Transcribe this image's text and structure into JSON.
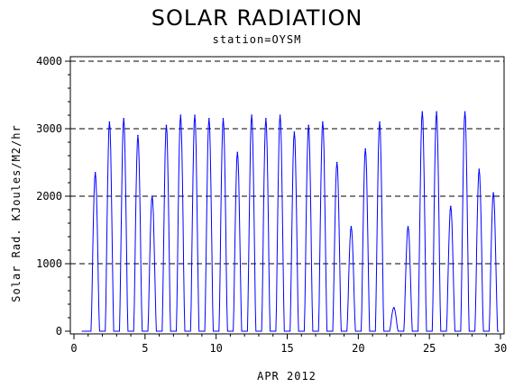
{
  "chart_data": {
    "type": "line",
    "title": "SOLAR RADIATION",
    "subtitle": "station=OYSM",
    "xlabel": "APR 2012",
    "ylabel": "Solar Rad. KJoules/M2/hr",
    "xlim": [
      0,
      30
    ],
    "ylim": [
      0,
      4000
    ],
    "x_ticks": [
      0,
      5,
      10,
      15,
      20,
      25,
      30
    ],
    "y_ticks": [
      0,
      1000,
      2000,
      3000,
      4000
    ],
    "grid": "horizontal dashed",
    "series": [
      {
        "color": "#0000ff",
        "daily_peaks": [
          {
            "day": 1,
            "peak": 2350
          },
          {
            "day": 2,
            "peak": 3100
          },
          {
            "day": 3,
            "peak": 3150
          },
          {
            "day": 4,
            "peak": 2900
          },
          {
            "day": 5,
            "peak": 2000
          },
          {
            "day": 6,
            "peak": 3050
          },
          {
            "day": 7,
            "peak": 3200
          },
          {
            "day": 8,
            "peak": 3200
          },
          {
            "day": 9,
            "peak": 3150
          },
          {
            "day": 10,
            "peak": 3150
          },
          {
            "day": 11,
            "peak": 2650
          },
          {
            "day": 12,
            "peak": 3200
          },
          {
            "day": 13,
            "peak": 3150
          },
          {
            "day": 14,
            "peak": 3200
          },
          {
            "day": 15,
            "peak": 2950
          },
          {
            "day": 16,
            "peak": 3050
          },
          {
            "day": 17,
            "peak": 3100
          },
          {
            "day": 18,
            "peak": 2500
          },
          {
            "day": 19,
            "peak": 1550
          },
          {
            "day": 20,
            "peak": 2700
          },
          {
            "day": 21,
            "peak": 3100
          },
          {
            "day": 22,
            "peak": 350
          },
          {
            "day": 23,
            "peak": 1550
          },
          {
            "day": 24,
            "peak": 3250
          },
          {
            "day": 25,
            "peak": 3250
          },
          {
            "day": 26,
            "peak": 1850
          },
          {
            "day": 27,
            "peak": 3250
          },
          {
            "day": 28,
            "peak": 2400
          },
          {
            "day": 29,
            "peak": 2050
          }
        ]
      }
    ]
  }
}
